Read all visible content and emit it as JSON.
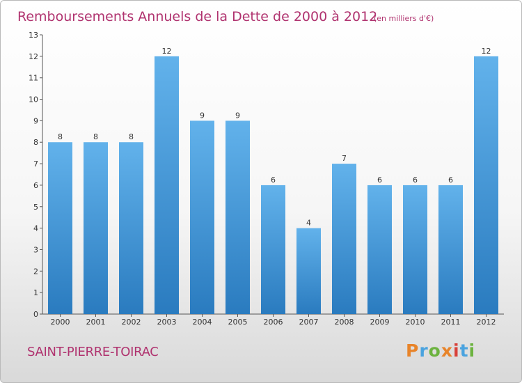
{
  "header": {
    "title": "Remboursements Annuels de la Dette de 2000 à 2012",
    "unit": "(en milliers d'€)"
  },
  "commune": "SAINT-PIERRE-TOIRAC",
  "logo": {
    "text": "Proxiti",
    "letter_colors": [
      "#e8842a",
      "#4aa3df",
      "#6cb33f",
      "#e8842a",
      "#d8413a",
      "#4aa3df",
      "#6cb33f"
    ]
  },
  "colors": {
    "bar_top": "#62b2eb",
    "bar_bottom": "#2a7bbf",
    "title": "#b0336f"
  },
  "chart_data": {
    "type": "bar",
    "categories": [
      "2000",
      "2001",
      "2002",
      "2003",
      "2004",
      "2005",
      "2006",
      "2007",
      "2008",
      "2009",
      "2010",
      "2011",
      "2012"
    ],
    "values": [
      8,
      8,
      8,
      12,
      9,
      9,
      6,
      4,
      7,
      6,
      6,
      6,
      12
    ],
    "title": "Remboursements Annuels de la Dette de 2000 à 2012",
    "ylim": [
      0,
      13
    ],
    "yticks": [
      0,
      1,
      2,
      3,
      4,
      5,
      6,
      7,
      8,
      9,
      10,
      11,
      12,
      13
    ],
    "grid": false,
    "data_labels": true
  }
}
